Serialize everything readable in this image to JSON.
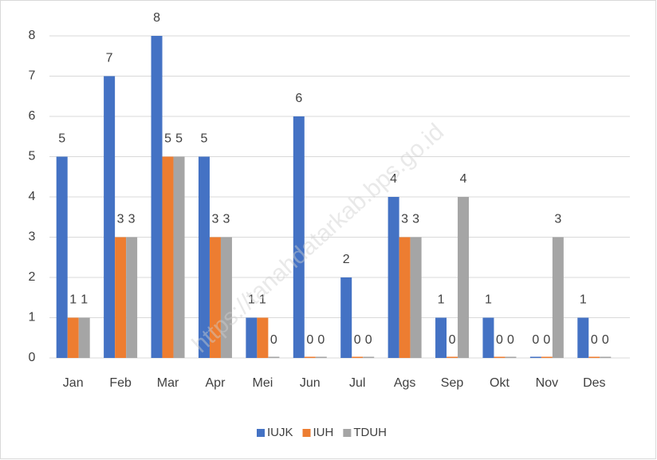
{
  "chart_data": {
    "type": "bar",
    "categories": [
      "Jan",
      "Feb",
      "Mar",
      "Apr",
      "Mei",
      "Jun",
      "Jul",
      "Ags",
      "Sep",
      "Okt",
      "Nov",
      "Des"
    ],
    "series": [
      {
        "name": "IUJK",
        "color": "#4472c4",
        "values": [
          5,
          7,
          8,
          5,
          1,
          6,
          2,
          4,
          1,
          1,
          0,
          1
        ]
      },
      {
        "name": "IUH",
        "color": "#ed7d31",
        "values": [
          1,
          3,
          5,
          3,
          1,
          0,
          0,
          3,
          0,
          0,
          0,
          0
        ]
      },
      {
        "name": "TDUH",
        "color": "#a5a5a5",
        "values": [
          1,
          3,
          5,
          3,
          0,
          0,
          0,
          3,
          4,
          0,
          3,
          0
        ]
      }
    ],
    "ylim": [
      0,
      8
    ],
    "yticks": [
      0,
      1,
      2,
      3,
      4,
      5,
      6,
      7,
      8
    ],
    "grid": true,
    "legend": "bottom",
    "watermark": "https://tanahdatarkab.bps.go.id"
  }
}
